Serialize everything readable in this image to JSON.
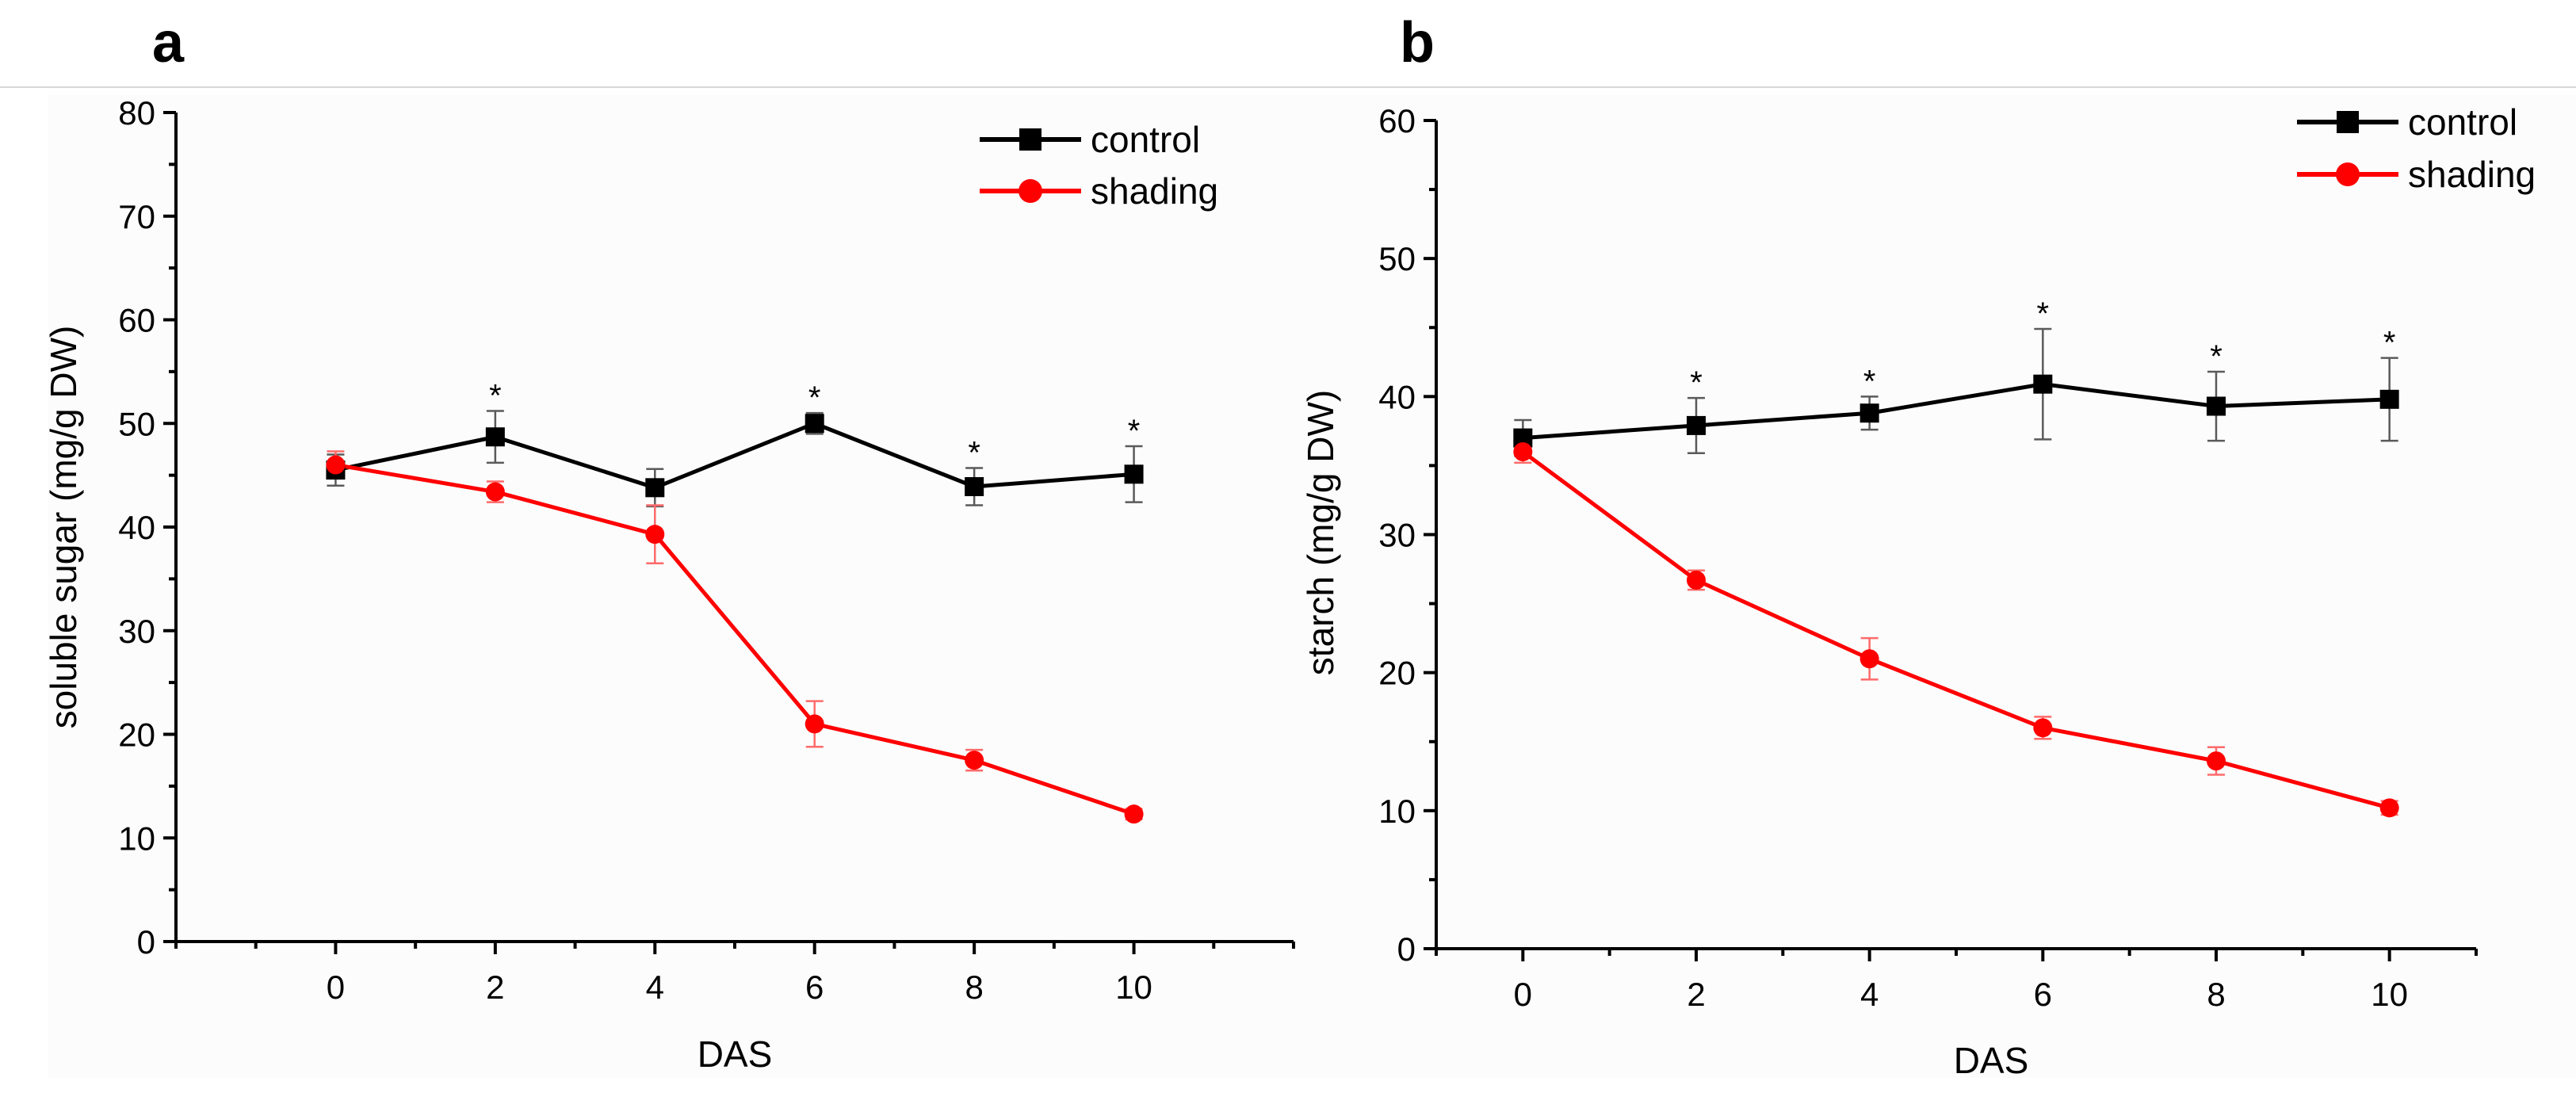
{
  "chart_data": [
    {
      "type": "line",
      "panel": "a",
      "title": "",
      "xlabel": "DAS",
      "ylabel": "soluble sugar (mg/g DW)",
      "x": [
        0,
        2,
        4,
        6,
        8,
        10
      ],
      "xticks": [
        "0",
        "2",
        "4",
        "6",
        "8",
        "10"
      ],
      "xlim": [
        -2,
        12
      ],
      "ylim": [
        0,
        80
      ],
      "yticks": [
        "0",
        "10",
        "20",
        "30",
        "40",
        "50",
        "60",
        "70",
        "80"
      ],
      "legend_position": "top-right",
      "series": [
        {
          "name": "control",
          "color": "#000000",
          "marker": "square",
          "values": [
            45.5,
            48.7,
            43.8,
            50.0,
            43.9,
            45.1
          ],
          "errors": [
            1.5,
            2.5,
            1.8,
            1.0,
            1.8,
            2.7
          ]
        },
        {
          "name": "shading",
          "color": "#ff0000",
          "marker": "circle",
          "values": [
            46.0,
            43.4,
            39.3,
            21.0,
            17.5,
            12.3
          ],
          "errors": [
            1.3,
            1.0,
            2.8,
            2.2,
            1.0,
            0.5
          ]
        }
      ],
      "significance": [
        {
          "x": 2,
          "label": "*"
        },
        {
          "x": 6,
          "label": "*"
        },
        {
          "x": 8,
          "label": "*"
        },
        {
          "x": 10,
          "label": "*"
        }
      ]
    },
    {
      "type": "line",
      "panel": "b",
      "title": "",
      "xlabel": "DAS",
      "ylabel": "starch (mg/g DW)",
      "x": [
        0,
        2,
        4,
        6,
        8,
        10
      ],
      "xticks": [
        "0",
        "2",
        "4",
        "6",
        "8",
        "10"
      ],
      "xlim": [
        -1,
        11
      ],
      "ylim": [
        0,
        60
      ],
      "yticks": [
        "0",
        "10",
        "20",
        "30",
        "40",
        "50",
        "60"
      ],
      "legend_position": "top-right",
      "series": [
        {
          "name": "control",
          "color": "#000000",
          "marker": "square",
          "values": [
            37.0,
            37.9,
            38.8,
            40.9,
            39.3,
            39.8
          ],
          "errors": [
            1.3,
            2.0,
            1.2,
            4.0,
            2.5,
            3.0
          ]
        },
        {
          "name": "shading",
          "color": "#ff0000",
          "marker": "circle",
          "values": [
            36.0,
            26.7,
            21.0,
            16.0,
            13.6,
            10.2
          ],
          "errors": [
            0.8,
            0.7,
            1.5,
            0.8,
            1.0,
            0.5
          ]
        }
      ],
      "significance": [
        {
          "x": 2,
          "label": "*"
        },
        {
          "x": 4,
          "label": "*"
        },
        {
          "x": 6,
          "label": "*"
        },
        {
          "x": 8,
          "label": "*"
        },
        {
          "x": 10,
          "label": "*"
        }
      ]
    }
  ]
}
